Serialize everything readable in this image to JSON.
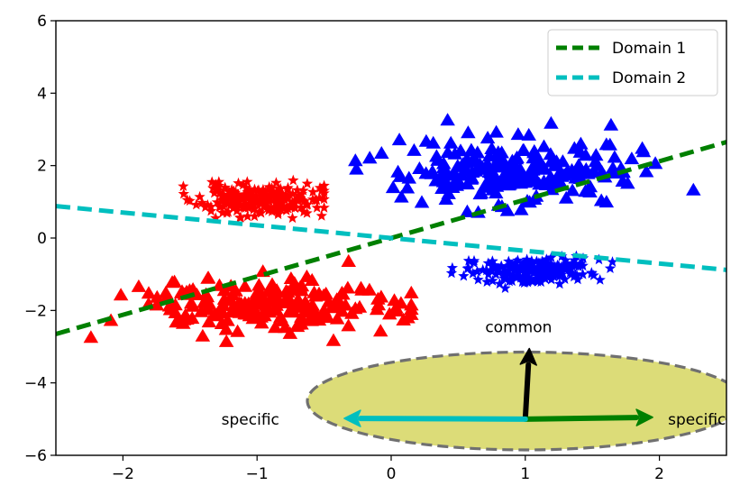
{
  "chart_data": {
    "type": "scatter",
    "title": "",
    "xlabel": "",
    "ylabel": "",
    "xlim": [
      -2.5,
      2.5
    ],
    "ylim": [
      -6,
      6
    ],
    "x_ticks": [
      -2,
      -1,
      0,
      1,
      2
    ],
    "x_tick_labels": [
      "−2",
      "−1",
      "0",
      "1",
      "2"
    ],
    "y_ticks": [
      -6,
      -4,
      -2,
      0,
      2,
      4,
      6
    ],
    "y_tick_labels": [
      "−6",
      "−4",
      "−2",
      "0",
      "2",
      "4",
      "6"
    ],
    "grid": false,
    "legend_position": "top-right",
    "colors": {
      "red": "#ff0000",
      "blue": "#0000ff",
      "green": "#008000",
      "cyan": "#00bfbf",
      "ellipse_fill": "#dcdc78",
      "ellipse_edge": "#707070",
      "black": "#000000"
    },
    "clusters": [
      {
        "name": "red-stars",
        "marker": "star",
        "color": "red",
        "center": [
          -1.0,
          1.05
        ],
        "spread": [
          0.22,
          0.22
        ],
        "count": 220,
        "x_range": [
          -1.55,
          -0.5
        ],
        "y_range": [
          0.55,
          1.8
        ],
        "seed": 11
      },
      {
        "name": "red-triangles",
        "marker": "triangle",
        "color": "red",
        "center": [
          -0.95,
          -1.9
        ],
        "spread": [
          0.5,
          0.38
        ],
        "count": 200,
        "x_range": [
          -2.3,
          0.15
        ],
        "y_range": [
          -3.3,
          -0.6
        ],
        "seed": 23
      },
      {
        "name": "blue-triangles",
        "marker": "triangle",
        "color": "blue",
        "center": [
          0.95,
          1.85
        ],
        "spread": [
          0.45,
          0.45
        ],
        "count": 220,
        "x_range": [
          -0.55,
          2.4
        ],
        "y_range": [
          0.7,
          3.5
        ],
        "seed": 37
      },
      {
        "name": "blue-stars",
        "marker": "star",
        "color": "blue",
        "center": [
          1.05,
          -0.9
        ],
        "spread": [
          0.22,
          0.17
        ],
        "count": 200,
        "x_range": [
          0.45,
          1.65
        ],
        "y_range": [
          -1.6,
          -0.5
        ],
        "seed": 53
      }
    ],
    "series": [
      {
        "name": "Domain 1",
        "kind": "dashed-line",
        "color": "green",
        "x": [
          -2.5,
          2.5
        ],
        "y": [
          -2.65,
          2.65
        ]
      },
      {
        "name": "Domain 2",
        "kind": "dashed-line",
        "color": "cyan",
        "x": [
          -2.5,
          2.5
        ],
        "y": [
          0.88,
          -0.88
        ]
      }
    ],
    "ellipse": {
      "center": [
        1.0,
        -4.5
      ],
      "width": 3.25,
      "height": 2.7
    },
    "arrows": [
      {
        "name": "common-arrow",
        "color": "black",
        "from": [
          1.0,
          -5.0
        ],
        "to": [
          1.03,
          -3.05
        ]
      },
      {
        "name": "specific-arrow-right",
        "color": "green",
        "from": [
          1.0,
          -5.0
        ],
        "to": [
          1.95,
          -4.95
        ]
      },
      {
        "name": "specific-arrow-left",
        "color": "cyan",
        "from": [
          1.0,
          -5.0
        ],
        "to": [
          -0.35,
          -4.98
        ]
      }
    ],
    "annotations": [
      {
        "name": "common-label",
        "text": "common",
        "x": 0.95,
        "y": -2.45
      },
      {
        "name": "specific-left-label",
        "text": "specific",
        "x": -1.05,
        "y": -5.0
      },
      {
        "name": "specific-right-label",
        "text": "specific",
        "x": 2.28,
        "y": -5.0
      }
    ],
    "legend": [
      {
        "label": "Domain 1",
        "color": "green"
      },
      {
        "label": "Domain 2",
        "color": "cyan"
      }
    ]
  }
}
